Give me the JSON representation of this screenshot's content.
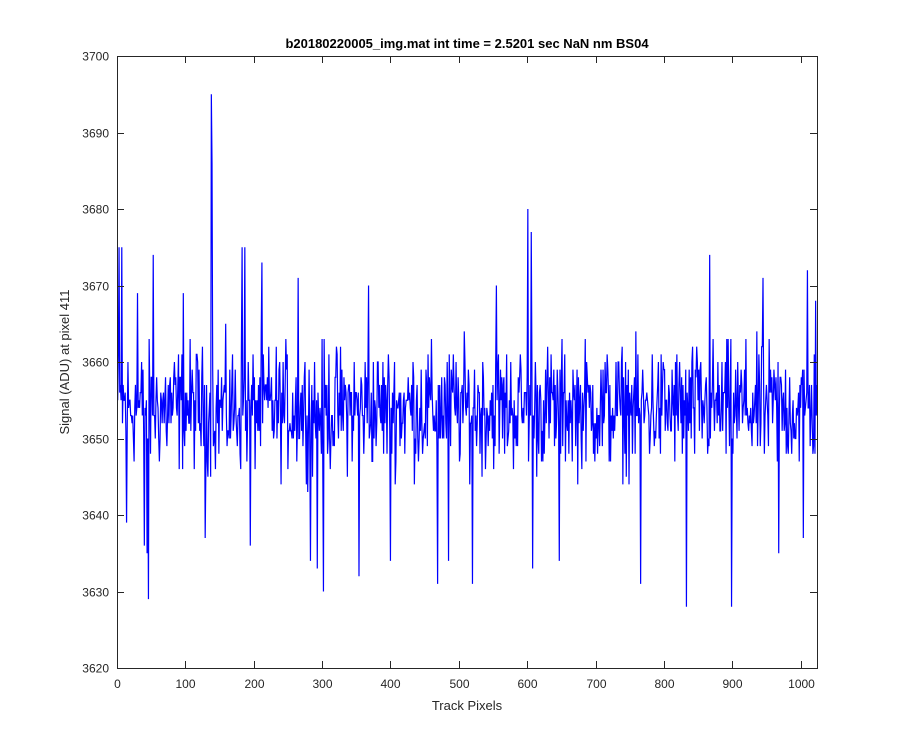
{
  "chart_data": {
    "type": "line",
    "title": "b20180220005_img.mat int time = 2.5201 sec  NaN nm BS04",
    "xlabel": "Track Pixels",
    "ylabel": "Signal (ADU) at pixel 411",
    "xlim": [
      0,
      1024
    ],
    "ylim": [
      3620,
      3700
    ],
    "xticks": [
      0,
      100,
      200,
      300,
      400,
      500,
      600,
      700,
      800,
      900,
      1000
    ],
    "yticks": [
      3620,
      3630,
      3640,
      3650,
      3660,
      3670,
      3680,
      3690,
      3700
    ],
    "xtick_labels": [
      "0",
      "100",
      "200",
      "300",
      "400",
      "500",
      "600",
      "700",
      "800",
      "900",
      "1000"
    ],
    "ytick_labels": [
      "3620",
      "3630",
      "3640",
      "3650",
      "3660",
      "3670",
      "3680",
      "3690",
      "3700"
    ],
    "grid": false,
    "series": [
      {
        "color": "#0000ff",
        "x_start": 1,
        "x_step": 1,
        "mean": 3654,
        "noise_amplitude": 7.5,
        "spikes": [
          {
            "x": 3,
            "y": 3675
          },
          {
            "x": 7,
            "y": 3675
          },
          {
            "x": 14,
            "y": 3639
          },
          {
            "x": 30,
            "y": 3669
          },
          {
            "x": 40,
            "y": 3636
          },
          {
            "x": 44,
            "y": 3635
          },
          {
            "x": 46,
            "y": 3629
          },
          {
            "x": 53,
            "y": 3674
          },
          {
            "x": 97,
            "y": 3669
          },
          {
            "x": 129,
            "y": 3637
          },
          {
            "x": 138,
            "y": 3695
          },
          {
            "x": 139,
            "y": 3686
          },
          {
            "x": 183,
            "y": 3675
          },
          {
            "x": 187,
            "y": 3675
          },
          {
            "x": 195,
            "y": 3636
          },
          {
            "x": 212,
            "y": 3673
          },
          {
            "x": 265,
            "y": 3671
          },
          {
            "x": 283,
            "y": 3634
          },
          {
            "x": 293,
            "y": 3633
          },
          {
            "x": 302,
            "y": 3630
          },
          {
            "x": 354,
            "y": 3632
          },
          {
            "x": 368,
            "y": 3670
          },
          {
            "x": 400,
            "y": 3634
          },
          {
            "x": 469,
            "y": 3631
          },
          {
            "x": 485,
            "y": 3634
          },
          {
            "x": 520,
            "y": 3631
          },
          {
            "x": 555,
            "y": 3670
          },
          {
            "x": 601,
            "y": 3680
          },
          {
            "x": 606,
            "y": 3677
          },
          {
            "x": 608,
            "y": 3633
          },
          {
            "x": 647,
            "y": 3634
          },
          {
            "x": 766,
            "y": 3631
          },
          {
            "x": 833,
            "y": 3628
          },
          {
            "x": 867,
            "y": 3674
          },
          {
            "x": 899,
            "y": 3628
          },
          {
            "x": 945,
            "y": 3671
          },
          {
            "x": 968,
            "y": 3635
          },
          {
            "x": 1004,
            "y": 3637
          },
          {
            "x": 1010,
            "y": 3672
          },
          {
            "x": 1022,
            "y": 3668
          }
        ]
      }
    ]
  }
}
